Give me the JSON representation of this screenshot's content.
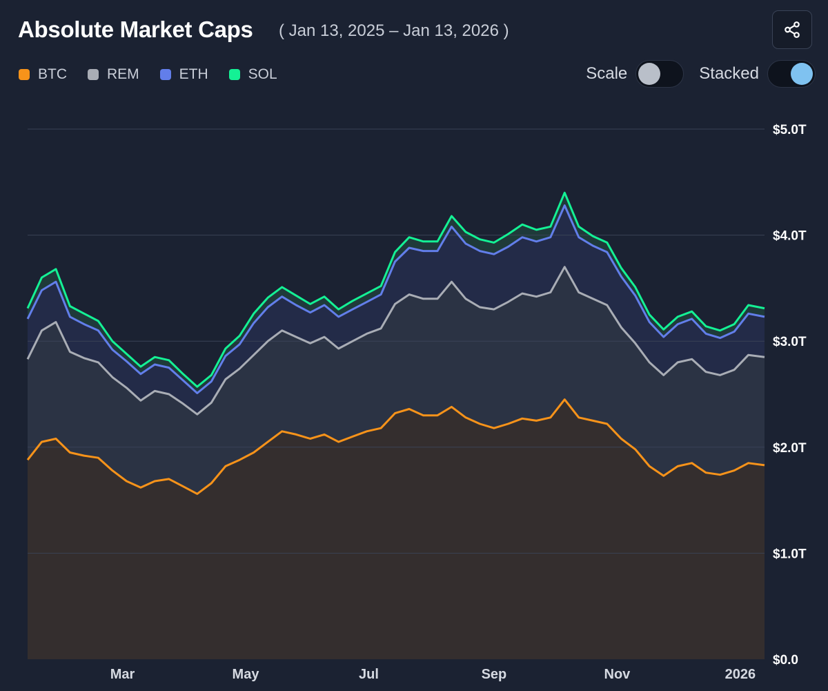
{
  "header": {
    "title": "Absolute Market Caps",
    "date_range": "( Jan 13, 2025 – Jan 13, 2026 )"
  },
  "legend": [
    {
      "label": "BTC",
      "color": "#f7931a"
    },
    {
      "label": "REM",
      "color": "#a9adb5"
    },
    {
      "label": "ETH",
      "color": "#627eea"
    },
    {
      "label": "SOL",
      "color": "#14f195"
    }
  ],
  "controls": {
    "scale_label": "Scale",
    "scale_on": false,
    "stacked_label": "Stacked",
    "stacked_on": true
  },
  "icons": {
    "share": "share-icon"
  },
  "chart_data": {
    "type": "area",
    "stacked": true,
    "x_unit": "date",
    "x": [
      "2025-01-13",
      "2025-01-20",
      "2025-01-27",
      "2025-02-03",
      "2025-02-10",
      "2025-02-17",
      "2025-02-24",
      "2025-03-03",
      "2025-03-10",
      "2025-03-17",
      "2025-03-24",
      "2025-03-31",
      "2025-04-07",
      "2025-04-14",
      "2025-04-21",
      "2025-04-28",
      "2025-05-05",
      "2025-05-12",
      "2025-05-19",
      "2025-05-26",
      "2025-06-02",
      "2025-06-09",
      "2025-06-16",
      "2025-06-23",
      "2025-06-30",
      "2025-07-07",
      "2025-07-14",
      "2025-07-21",
      "2025-07-28",
      "2025-08-04",
      "2025-08-11",
      "2025-08-18",
      "2025-08-25",
      "2025-09-01",
      "2025-09-08",
      "2025-09-15",
      "2025-09-22",
      "2025-09-29",
      "2025-10-06",
      "2025-10-13",
      "2025-10-20",
      "2025-10-27",
      "2025-11-03",
      "2025-11-10",
      "2025-11-17",
      "2025-11-24",
      "2025-12-01",
      "2025-12-08",
      "2025-12-15",
      "2025-12-22",
      "2025-12-29",
      "2026-01-05",
      "2026-01-13"
    ],
    "series": [
      {
        "name": "BTC",
        "color": "#f7931a",
        "values": [
          1.88,
          2.05,
          2.08,
          1.95,
          1.92,
          1.9,
          1.78,
          1.68,
          1.62,
          1.68,
          1.7,
          1.63,
          1.56,
          1.66,
          1.82,
          1.88,
          1.95,
          2.05,
          2.15,
          2.12,
          2.08,
          2.12,
          2.05,
          2.1,
          2.15,
          2.18,
          2.32,
          2.36,
          2.3,
          2.3,
          2.38,
          2.28,
          2.22,
          2.18,
          2.22,
          2.27,
          2.25,
          2.28,
          2.45,
          2.28,
          2.25,
          2.22,
          2.08,
          1.98,
          1.82,
          1.73,
          1.82,
          1.85,
          1.76,
          1.74,
          1.78,
          1.85,
          1.83
        ]
      },
      {
        "name": "REM",
        "color": "#a9adb5",
        "values": [
          0.95,
          1.05,
          1.1,
          0.95,
          0.92,
          0.9,
          0.88,
          0.88,
          0.82,
          0.85,
          0.8,
          0.78,
          0.75,
          0.76,
          0.82,
          0.86,
          0.92,
          0.95,
          0.95,
          0.92,
          0.9,
          0.92,
          0.88,
          0.9,
          0.92,
          0.94,
          1.03,
          1.08,
          1.1,
          1.1,
          1.18,
          1.12,
          1.1,
          1.12,
          1.15,
          1.18,
          1.17,
          1.18,
          1.25,
          1.18,
          1.15,
          1.12,
          1.05,
          1.0,
          0.98,
          0.95,
          0.98,
          0.98,
          0.95,
          0.94,
          0.95,
          1.02,
          1.02
        ]
      },
      {
        "name": "ETH",
        "color": "#627eea",
        "values": [
          0.38,
          0.38,
          0.38,
          0.33,
          0.32,
          0.3,
          0.26,
          0.25,
          0.25,
          0.25,
          0.25,
          0.22,
          0.2,
          0.2,
          0.22,
          0.23,
          0.3,
          0.32,
          0.32,
          0.3,
          0.29,
          0.3,
          0.3,
          0.3,
          0.3,
          0.32,
          0.4,
          0.44,
          0.45,
          0.45,
          0.52,
          0.52,
          0.53,
          0.52,
          0.52,
          0.53,
          0.52,
          0.52,
          0.58,
          0.52,
          0.5,
          0.5,
          0.48,
          0.45,
          0.38,
          0.36,
          0.36,
          0.38,
          0.36,
          0.35,
          0.36,
          0.39,
          0.38
        ]
      },
      {
        "name": "SOL",
        "color": "#14f195",
        "values": [
          0.1,
          0.12,
          0.12,
          0.1,
          0.1,
          0.09,
          0.08,
          0.07,
          0.07,
          0.07,
          0.07,
          0.06,
          0.06,
          0.06,
          0.07,
          0.08,
          0.09,
          0.09,
          0.09,
          0.09,
          0.08,
          0.08,
          0.07,
          0.08,
          0.08,
          0.08,
          0.09,
          0.1,
          0.09,
          0.09,
          0.1,
          0.11,
          0.11,
          0.11,
          0.12,
          0.12,
          0.11,
          0.1,
          0.12,
          0.1,
          0.09,
          0.09,
          0.08,
          0.08,
          0.07,
          0.07,
          0.07,
          0.07,
          0.07,
          0.07,
          0.07,
          0.08,
          0.08
        ]
      }
    ],
    "ylim": [
      0,
      5
    ],
    "yticks": [
      {
        "value": 0,
        "label": "$0.0"
      },
      {
        "value": 1,
        "label": "$1.0T"
      },
      {
        "value": 2,
        "label": "$2.0T"
      },
      {
        "value": 3,
        "label": "$3.0T"
      },
      {
        "value": 4,
        "label": "$4.0T"
      },
      {
        "value": 5,
        "label": "$5.0T"
      }
    ],
    "xticks": [
      {
        "date": "2025-03-01",
        "label": "Mar"
      },
      {
        "date": "2025-05-01",
        "label": "May"
      },
      {
        "date": "2025-07-01",
        "label": "Jul"
      },
      {
        "date": "2025-09-01",
        "label": "Sep"
      },
      {
        "date": "2025-11-01",
        "label": "Nov"
      },
      {
        "date": "2026-01-01",
        "label": "2026"
      }
    ],
    "grid": true,
    "fill_colors": {
      "BTC": "#342e2e",
      "REM": "#2b3344",
      "ETH": "#232b48",
      "SOL": "#1f3a3a"
    }
  }
}
